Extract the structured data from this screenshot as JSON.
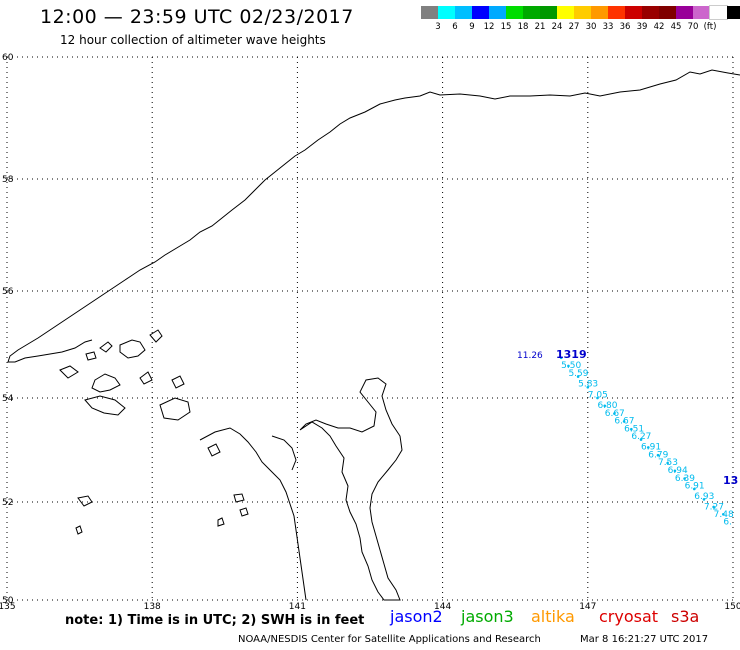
{
  "title": "12:00 — 23:59 UTC 02/23/2017",
  "subtitle": "12 hour collection of altimeter wave heights",
  "legend": {
    "colors": [
      "#808080",
      "#00ffff",
      "#00bfff",
      "#0000ff",
      "#00aaff",
      "#00dd00",
      "#00aa00",
      "#009900",
      "#ffff00",
      "#ffcc00",
      "#ff9900",
      "#ff3300",
      "#cc0000",
      "#990000",
      "#800000",
      "#990099",
      "#cc66cc",
      "#ffffff",
      "#000000"
    ],
    "labels": [
      "3",
      "6",
      "9",
      "12",
      "15",
      "18",
      "21",
      "24",
      "27",
      "30",
      "33",
      "36",
      "39",
      "42",
      "45",
      "70",
      "(ft)"
    ]
  },
  "axes": {
    "lon_ticks": [
      "135",
      "138",
      "141",
      "144",
      "147",
      "150"
    ],
    "lat_ticks": [
      "60",
      "58",
      "56",
      "54",
      "52",
      "50"
    ]
  },
  "track": {
    "color": "#00bbee",
    "pass_label": "1319",
    "pass_label_2": "13",
    "label_color": "#0000cc",
    "first_value": "11.26",
    "points": [
      {
        "lon": 146.45,
        "lat": 54.75,
        "swh": "5.50"
      },
      {
        "lon": 146.6,
        "lat": 54.6,
        "swh": "5.59"
      },
      {
        "lon": 146.8,
        "lat": 54.4,
        "swh": "5.83"
      },
      {
        "lon": 147.0,
        "lat": 54.2,
        "swh": "7.05"
      },
      {
        "lon": 147.2,
        "lat": 54.0,
        "swh": "6.80"
      },
      {
        "lon": 147.35,
        "lat": 53.85,
        "swh": "6.67"
      },
      {
        "lon": 147.55,
        "lat": 53.7,
        "swh": "6.67"
      },
      {
        "lon": 147.75,
        "lat": 53.55,
        "swh": "6.51"
      },
      {
        "lon": 147.9,
        "lat": 53.4,
        "swh": "6.27"
      },
      {
        "lon": 148.1,
        "lat": 53.2,
        "swh": "6.91"
      },
      {
        "lon": 148.25,
        "lat": 53.05,
        "swh": "6.79"
      },
      {
        "lon": 148.45,
        "lat": 52.9,
        "swh": "7.53"
      },
      {
        "lon": 148.65,
        "lat": 52.75,
        "swh": "6.94"
      },
      {
        "lon": 148.8,
        "lat": 52.6,
        "swh": "6.39"
      },
      {
        "lon": 149.0,
        "lat": 52.45,
        "swh": "6.91"
      },
      {
        "lon": 149.2,
        "lat": 52.25,
        "swh": "6.93"
      },
      {
        "lon": 149.4,
        "lat": 52.05,
        "swh": "7.27"
      },
      {
        "lon": 149.6,
        "lat": 51.9,
        "swh": "7.48"
      },
      {
        "lon": 149.8,
        "lat": 51.75,
        "swh": "6."
      }
    ]
  },
  "footer": {
    "note": "note:  1) Time is in UTC;  2) SWH is in feet",
    "satellites": [
      {
        "name": "jason2",
        "color": "#0000ff"
      },
      {
        "name": "jason3",
        "color": "#00aa00"
      },
      {
        "name": "altika",
        "color": "#ff9900"
      },
      {
        "name": "cryosat",
        "color": "#dd0000"
      },
      {
        "name": "s3a",
        "color": "#cc0000"
      }
    ],
    "credit": "NOAA/NESDIS Center for Satellite Applications and Research",
    "timestamp": "Mar  8 16:21:27 UTC 2017"
  }
}
